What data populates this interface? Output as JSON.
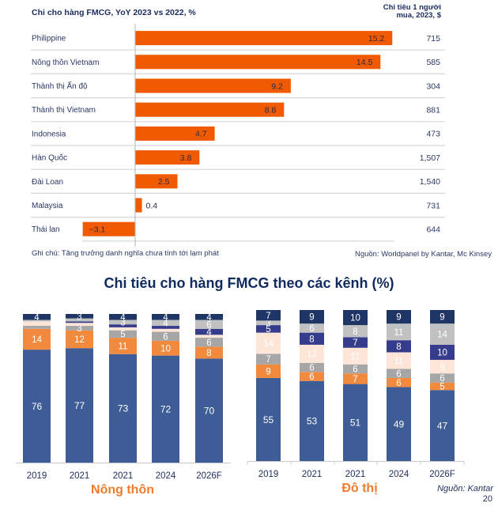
{
  "chart_data": [
    {
      "type": "bar",
      "orientation": "horizontal",
      "title": "Chi cho hàng FMCG, YoY 2023 vs 2022, %",
      "side_column_header": "Chi tiêu 1 người mua, 2023, $",
      "categories": [
        "Philippine",
        "Nông thôn Vietnam",
        "Thành thị Ấn độ",
        "Thành thị Vietnam",
        "Indonesia",
        "Hàn Quốc",
        "Đài Loan",
        "Malaysia",
        "Thái lan"
      ],
      "values": [
        15.2,
        14.5,
        9.2,
        8.8,
        4.7,
        3.8,
        2.5,
        0.4,
        -3.1
      ],
      "value_labels": [
        "15.2",
        "14.5",
        "9.2",
        "8.8",
        "4.7",
        "3.8",
        "2.5",
        "0.4",
        "−3.1"
      ],
      "side_values": [
        "715",
        "585",
        "304",
        "881",
        "473",
        "1,507",
        "1,540",
        "731",
        "644"
      ],
      "bar_color": "#f05a00",
      "note": "Ghi chú: Tăng trưởng danh nghĩa chưa tính tới lạm phát",
      "source": "Nguồn: Worldpanel by Kantar, Mc Kinsey"
    },
    {
      "type": "bar",
      "stacked": true,
      "title": "Chi tiêu cho hàng FMCG theo các kênh (%)",
      "group": "Nông thôn",
      "categories": [
        "2019",
        "2021",
        "2021",
        "2024",
        "2026F"
      ],
      "ylim": [
        0,
        100
      ],
      "series": [
        {
          "color": "#3e5c96",
          "values": [
            76,
            77,
            73,
            72,
            70
          ],
          "labels": [
            "76",
            "77",
            "73",
            "72",
            "70"
          ]
        },
        {
          "color": "#f28a3e",
          "values": [
            14,
            12,
            11,
            10,
            8
          ],
          "labels": [
            "14",
            "12",
            "11",
            "10",
            "8"
          ]
        },
        {
          "color": "#a6a6a6",
          "values": [
            2,
            3,
            5,
            6,
            6
          ],
          "labels": [
            null,
            "3",
            "5",
            "6",
            "6"
          ]
        },
        {
          "color": "#fde5d8",
          "values": [
            3,
            2,
            2,
            2,
            2
          ],
          "labels": [
            null,
            null,
            null,
            null,
            null
          ]
        },
        {
          "color": "#363c8c",
          "values": [
            0,
            1,
            2,
            2,
            4
          ],
          "labels": [
            null,
            null,
            null,
            null,
            "4"
          ]
        },
        {
          "color": "#c1c1c1",
          "values": [
            1,
            2,
            3,
            4,
            6
          ],
          "labels": [
            null,
            null,
            "3",
            "4",
            "6"
          ]
        },
        {
          "color": "#1e3566",
          "values": [
            4,
            3,
            4,
            4,
            4
          ],
          "labels": [
            "4",
            "3",
            "4",
            "4",
            "4"
          ]
        }
      ]
    },
    {
      "type": "bar",
      "stacked": true,
      "group": "Đô thị",
      "categories": [
        "2019",
        "2021",
        "2021",
        "2024",
        "2026F"
      ],
      "ylim": [
        0,
        100
      ],
      "series": [
        {
          "color": "#3e5c96",
          "values": [
            55,
            53,
            51,
            49,
            47
          ],
          "labels": [
            "55",
            "53",
            "51",
            "49",
            "47"
          ]
        },
        {
          "color": "#f28a3e",
          "values": [
            9,
            6,
            7,
            6,
            5
          ],
          "labels": [
            "9",
            "6",
            "7",
            "6",
            "5"
          ]
        },
        {
          "color": "#a6a6a6",
          "values": [
            7,
            6,
            6,
            6,
            6
          ],
          "labels": [
            "7",
            "6",
            "6",
            "6",
            "6"
          ]
        },
        {
          "color": "#fde5d8",
          "values": [
            14,
            12,
            11,
            11,
            9
          ],
          "labels": [
            "14",
            "12",
            "11",
            "11",
            "9"
          ]
        },
        {
          "color": "#363c8c",
          "values": [
            5,
            8,
            7,
            8,
            10
          ],
          "labels": [
            "5",
            "8",
            "7",
            "8",
            "10"
          ]
        },
        {
          "color": "#c1c1c1",
          "values": [
            3,
            6,
            8,
            11,
            14
          ],
          "labels": [
            "3",
            "6",
            "8",
            "11",
            "14"
          ]
        },
        {
          "color": "#1e3566",
          "values": [
            7,
            9,
            10,
            9,
            9
          ],
          "labels": [
            "7",
            "9",
            "10",
            "9",
            "9"
          ]
        }
      ],
      "source": "Nguồn: Kantar"
    }
  ],
  "page": {
    "number": "20"
  }
}
